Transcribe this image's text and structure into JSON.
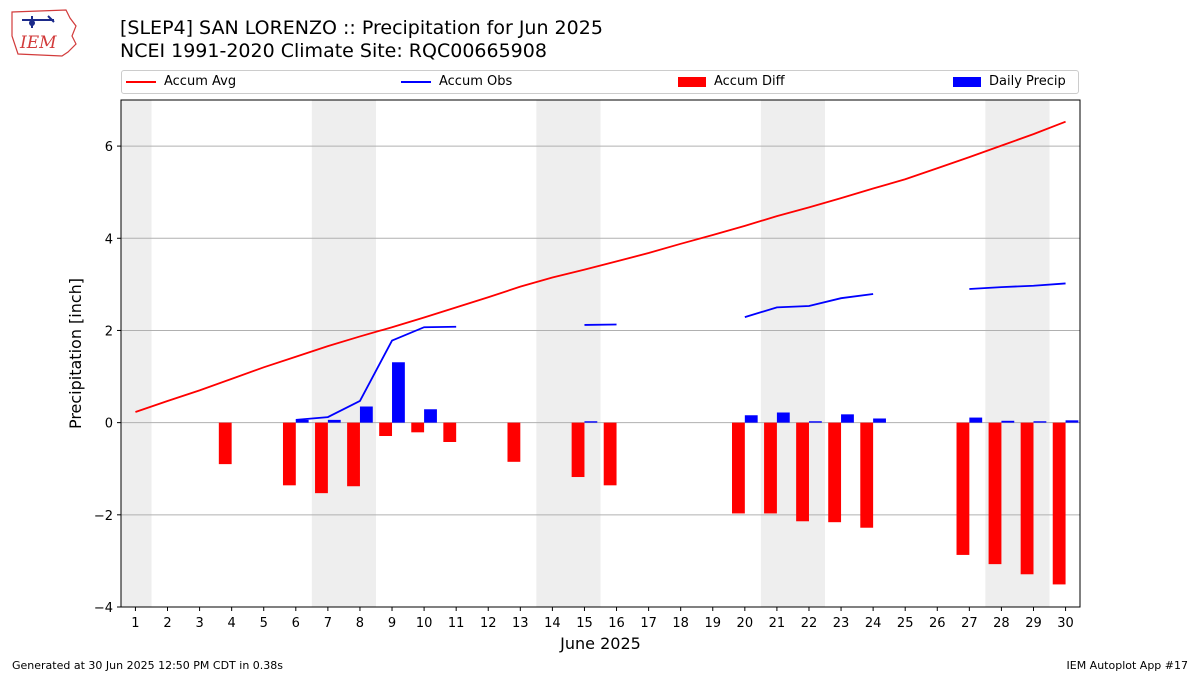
{
  "header": {
    "title_line1": "[SLEP4] SAN LORENZO :: Precipitation for Jun 2025",
    "title_line2": "NCEI 1991-2020 Climate Site: RQC00665908",
    "logo_text": "IEM"
  },
  "footer": {
    "left": "Generated at 30 Jun 2025 12:50 PM CDT in 0.38s",
    "right": "IEM Autoplot App #17"
  },
  "chart_data": {
    "type": "bar",
    "title": "[SLEP4] SAN LORENZO :: Precipitation for Jun 2025",
    "subtitle": "NCEI 1991-2020 Climate Site: RQC00665908",
    "xlabel": "June 2025",
    "ylabel": "Precipitation [inch]",
    "ylim": [
      -4,
      7
    ],
    "yticks": [
      -4,
      -2,
      0,
      2,
      4,
      6
    ],
    "ytick_labels": [
      "−4",
      "−2",
      "0",
      "2",
      "4",
      "6"
    ],
    "x": [
      1,
      2,
      3,
      4,
      5,
      6,
      7,
      8,
      9,
      10,
      11,
      12,
      13,
      14,
      15,
      16,
      17,
      18,
      19,
      20,
      21,
      22,
      23,
      24,
      25,
      26,
      27,
      28,
      29,
      30
    ],
    "grid": "horizontal",
    "legend_position": "top",
    "weekend_shading": [
      [
        1,
        1
      ],
      [
        7,
        8
      ],
      [
        14,
        15
      ],
      [
        21,
        22
      ],
      [
        28,
        29
      ]
    ],
    "series": [
      {
        "name": "Accum Avg",
        "kind": "line",
        "color": "#ff0000",
        "values": [
          0.23,
          0.47,
          0.7,
          0.95,
          1.2,
          1.43,
          1.66,
          1.87,
          2.07,
          2.28,
          2.5,
          2.72,
          2.95,
          3.15,
          3.32,
          3.5,
          3.68,
          3.88,
          4.07,
          4.27,
          4.48,
          4.67,
          4.87,
          5.08,
          5.28,
          5.52,
          5.76,
          6.01,
          6.26,
          6.53
        ]
      },
      {
        "name": "Accum Obs",
        "kind": "line",
        "color": "#0000ff",
        "values": [
          null,
          null,
          null,
          null,
          null,
          0.06,
          0.12,
          0.47,
          1.78,
          2.07,
          2.08,
          null,
          null,
          null,
          2.12,
          2.13,
          null,
          null,
          null,
          2.29,
          2.5,
          2.53,
          2.7,
          2.79,
          null,
          null,
          2.9,
          2.94,
          2.97,
          3.02
        ]
      },
      {
        "name": "Accum Diff",
        "kind": "bar",
        "color": "#ff0000",
        "values": [
          null,
          null,
          null,
          -0.9,
          null,
          -1.36,
          -1.53,
          -1.38,
          -0.29,
          -0.21,
          -0.42,
          null,
          -0.85,
          null,
          -1.18,
          -1.36,
          null,
          null,
          null,
          -1.97,
          -1.97,
          -2.14,
          -2.16,
          -2.28,
          null,
          null,
          -2.87,
          -3.07,
          -3.29,
          -3.51
        ]
      },
      {
        "name": "Daily Precip",
        "kind": "bar",
        "color": "#0000ff",
        "values": [
          0,
          0,
          0,
          0,
          0,
          0.06,
          0.06,
          0.35,
          1.31,
          0.29,
          0,
          0,
          0,
          0,
          0.03,
          0,
          0,
          0,
          0,
          0.16,
          0.22,
          0.03,
          0.18,
          0.09,
          0,
          0,
          0.11,
          0.04,
          0.03,
          0.05
        ]
      }
    ]
  }
}
